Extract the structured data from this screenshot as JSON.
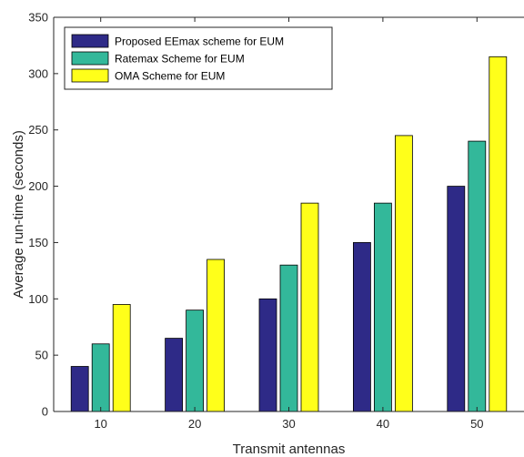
{
  "chart_data": {
    "type": "bar",
    "title": "",
    "xlabel": "Transmit antennas",
    "ylabel": "Average run-time (seconds)",
    "categories": [
      "10",
      "20",
      "30",
      "40",
      "50"
    ],
    "ylim": [
      0,
      350
    ],
    "yticks": [
      0,
      50,
      100,
      150,
      200,
      250,
      300,
      350
    ],
    "grid": false,
    "legend_position": "top-left",
    "series": [
      {
        "name": "Proposed EEmax scheme for EUM",
        "color": "#2E2A87",
        "values": [
          40,
          65,
          100,
          150,
          200
        ]
      },
      {
        "name": "Ratemax Scheme for EUM",
        "color": "#33B89A",
        "values": [
          60,
          90,
          130,
          185,
          240
        ]
      },
      {
        "name": "OMA Scheme for EUM",
        "color": "#FFFF1A",
        "values": [
          95,
          135,
          185,
          245,
          315
        ]
      }
    ]
  }
}
